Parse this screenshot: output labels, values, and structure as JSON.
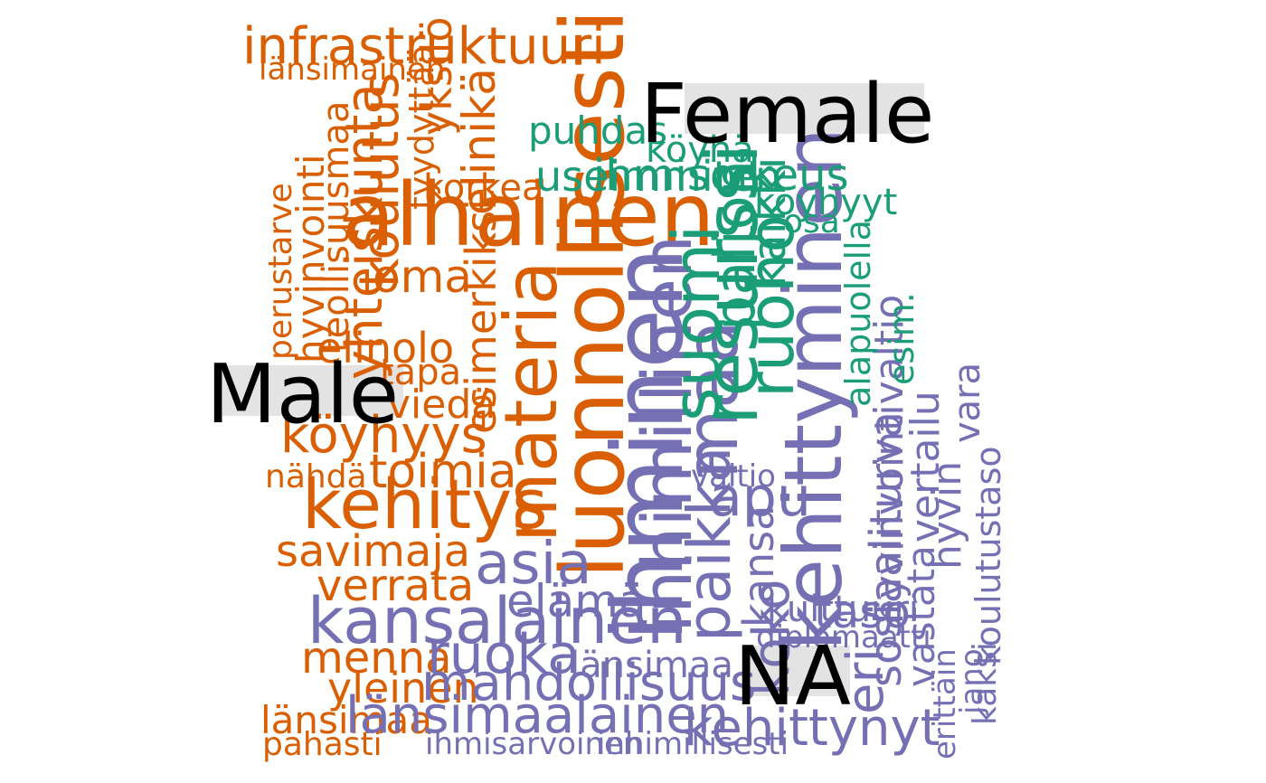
{
  "colors": {
    "Female": "#1b9e77",
    "Male": "#d95f02",
    "NA": "#7570b3",
    "label": "#000000",
    "label_bg": "#e3e3e3"
  },
  "labels": {
    "female": "Female",
    "male": "Male",
    "na": "NA"
  },
  "words": {
    "infrastruktuuri": "infrastruktuuri",
    "lansimainen": "länsimainen",
    "yksilo": "yksilö",
    "perustarve": "perustarve",
    "hyvinvointi": "hyvinvointi",
    "koulutus": "koulutus",
    "teollisuusmaa": "teollisuusmaa",
    "yhteiskunta": "yhteiskunta",
    "tyydyttaa": "tyydyttää",
    "korkea": "korkea",
    "elinika": "elinikä",
    "alhainen": "alhainen",
    "oma": "oma",
    "elinolo": "elinolo",
    "tapa": "tapa",
    "vieda": "viedä",
    "koyhyys": "köyhyys",
    "toimia": "toimia",
    "nahda": "nähdä",
    "kehitys": "kehitys",
    "savimaja": "savimaja",
    "verrata": "verrata",
    "menna": "mennä",
    "yleinen": "yleinen",
    "lansimaa": "länsimaa",
    "pahasti": "pahasti",
    "materia": "materia",
    "esimerkiksi": "esimerkiksi",
    "luonnollisesti": "luonnollisesti",
    "ihminen": "ihminen",
    "kansalainen": "kansalainen",
    "ruoka": "ruoka",
    "elama": "elämä",
    "asia": "asia",
    "mahdollisuus": "mahdollisuus",
    "lansimaalainen": "länsimaalainen",
    "inhimillinen": "inhimillinen",
    "kehittynyt": "kehittynyt",
    "inhimillisesti": "inhimillisesti",
    "ihmisarvoinen": "ihmisarvoinen",
    "lansiman": "länsimaa",
    "valtio": "valtio",
    "apu": "apu",
    "paikka": "paikka",
    "kansa": "kansa",
    "diplomaatti": "diplomaatti",
    "sosiaaliturva": "sosiaaliturva",
    "maa": "maa",
    "kehittyminen": "kehittyminen",
    "eri": "eri",
    "koko": "koko",
    "kulttuuri": "kulttuuri",
    "taso": "taso",
    "vastata": "vastata",
    "hyvinvointivaltio": "hyvinvointivaltio",
    "vertailu": "vertailu",
    "hyvin": "hyvin",
    "vara": "vara",
    "koulutustaso": "koulutustaso",
    "kaksi": "kaksi",
    "jano": "jano",
    "erittain": "erittäin",
    "puhdas": "puhdas",
    "koyha": "köyhä",
    "useimmiten": "useimmiten",
    "ihmisoikeus": "ihmisoikeus",
    "koyhyyt": "köyhyyt",
    "osa": "osa",
    "kaikki": "kaikki",
    "paljon": "paljon",
    "ruoho": "ruoho",
    "suomi": "suomi",
    "esim": "esim.",
    "alapuolella": "alapuolella",
    "paremmin": "paremmin",
    "resurssi": "resurssi"
  }
}
